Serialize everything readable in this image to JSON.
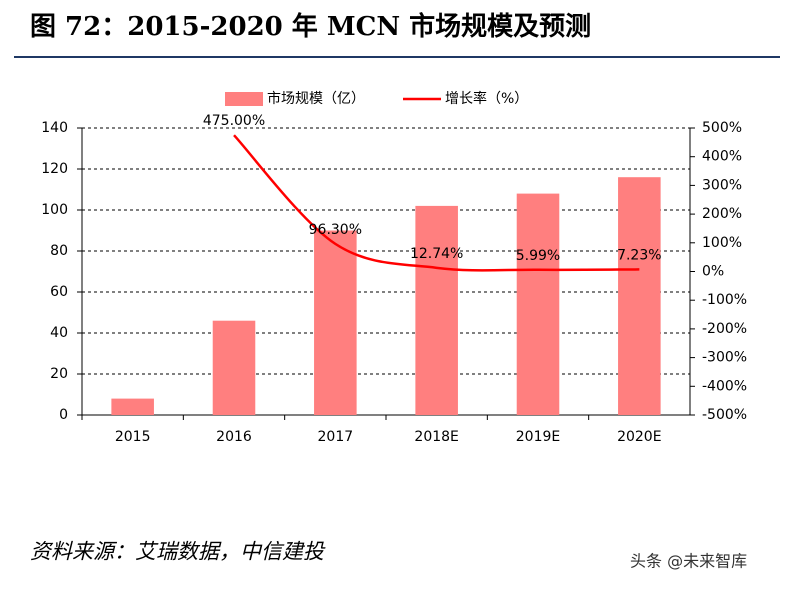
{
  "title": "图 72：2015-2020 年 MCN 市场规模及预测",
  "source": "资料来源：艾瑞数据，中信建投",
  "watermark": "头条 @未来智库",
  "chart_data": {
    "type": "bar-line",
    "categories": [
      "2015",
      "2016",
      "2017",
      "2018E",
      "2019E",
      "2020E"
    ],
    "series": [
      {
        "name": "市场规模（亿）",
        "type": "bar",
        "color": "#ff7f7f",
        "values": [
          8,
          46,
          90,
          102,
          108,
          116
        ]
      },
      {
        "name": "增长率（%）",
        "type": "line",
        "axis": "y2",
        "color": "#ff0000",
        "values": [
          null,
          475,
          96.3,
          12.74,
          5.99,
          7.23
        ],
        "value_labels": [
          null,
          "475.00%",
          "96.30%",
          "12.74%",
          "5.99%",
          "7.23%"
        ]
      }
    ],
    "ylim": [
      0,
      140
    ],
    "yticks": [
      0,
      20,
      40,
      60,
      80,
      100,
      120,
      140
    ],
    "y2lim": [
      -500,
      500
    ],
    "y2ticks": [
      {
        "value": -500,
        "label": "-500%"
      },
      {
        "value": -400,
        "label": "-400%"
      },
      {
        "value": -300,
        "label": "-300%"
      },
      {
        "value": -200,
        "label": "-200%"
      },
      {
        "value": -100,
        "label": "-100%"
      },
      {
        "value": 0,
        "label": "0%"
      },
      {
        "value": 100,
        "label": "100%"
      },
      {
        "value": 200,
        "label": "200%"
      },
      {
        "value": 300,
        "label": "300%"
      },
      {
        "value": 400,
        "label": "400%"
      },
      {
        "value": 500,
        "label": "500%"
      }
    ],
    "grid": true,
    "legend": "top"
  }
}
